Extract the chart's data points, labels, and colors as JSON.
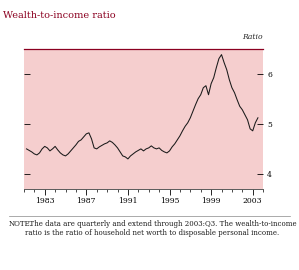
{
  "title": "Wealth-to-income ratio",
  "ylabel_right": "Ratio",
  "note_bold": "NOTE.",
  "note_rest": "  The data are quarterly and extend through 2003:Q3. The wealth-to-income ratio is the ratio of household net worth to disposable personal income.",
  "bg_white": "#ffffff",
  "background_color": "#f5cece",
  "line_color": "#1a1a1a",
  "title_color": "#8b0020",
  "border_color": "#8b0020",
  "tick_color": "#5a5a5a",
  "ylim": [
    3.7,
    6.5
  ],
  "yticks": [
    4,
    5,
    6
  ],
  "xlim": [
    1981.25,
    2004.0
  ],
  "xticks": [
    1983,
    1987,
    1991,
    1995,
    1999,
    2003
  ],
  "data": [
    [
      1981.25,
      4.5
    ],
    [
      1981.5,
      4.47
    ],
    [
      1981.75,
      4.44
    ],
    [
      1982.0,
      4.4
    ],
    [
      1982.25,
      4.38
    ],
    [
      1982.5,
      4.42
    ],
    [
      1982.75,
      4.5
    ],
    [
      1983.0,
      4.55
    ],
    [
      1983.25,
      4.52
    ],
    [
      1983.5,
      4.46
    ],
    [
      1983.75,
      4.5
    ],
    [
      1984.0,
      4.55
    ],
    [
      1984.25,
      4.48
    ],
    [
      1984.5,
      4.42
    ],
    [
      1984.75,
      4.38
    ],
    [
      1985.0,
      4.36
    ],
    [
      1985.25,
      4.4
    ],
    [
      1985.5,
      4.46
    ],
    [
      1985.75,
      4.52
    ],
    [
      1986.0,
      4.58
    ],
    [
      1986.25,
      4.65
    ],
    [
      1986.5,
      4.68
    ],
    [
      1986.75,
      4.74
    ],
    [
      1987.0,
      4.8
    ],
    [
      1987.25,
      4.82
    ],
    [
      1987.5,
      4.7
    ],
    [
      1987.75,
      4.52
    ],
    [
      1988.0,
      4.5
    ],
    [
      1988.25,
      4.54
    ],
    [
      1988.5,
      4.57
    ],
    [
      1988.75,
      4.6
    ],
    [
      1989.0,
      4.62
    ],
    [
      1989.25,
      4.66
    ],
    [
      1989.5,
      4.63
    ],
    [
      1989.75,
      4.58
    ],
    [
      1990.0,
      4.52
    ],
    [
      1990.25,
      4.44
    ],
    [
      1990.5,
      4.36
    ],
    [
      1990.75,
      4.34
    ],
    [
      1991.0,
      4.3
    ],
    [
      1991.25,
      4.36
    ],
    [
      1991.5,
      4.4
    ],
    [
      1991.75,
      4.44
    ],
    [
      1992.0,
      4.47
    ],
    [
      1992.25,
      4.5
    ],
    [
      1992.5,
      4.46
    ],
    [
      1992.75,
      4.5
    ],
    [
      1993.0,
      4.52
    ],
    [
      1993.25,
      4.56
    ],
    [
      1993.5,
      4.52
    ],
    [
      1993.75,
      4.5
    ],
    [
      1994.0,
      4.52
    ],
    [
      1994.25,
      4.47
    ],
    [
      1994.5,
      4.44
    ],
    [
      1994.75,
      4.42
    ],
    [
      1995.0,
      4.46
    ],
    [
      1995.25,
      4.54
    ],
    [
      1995.5,
      4.6
    ],
    [
      1995.75,
      4.68
    ],
    [
      1996.0,
      4.76
    ],
    [
      1996.25,
      4.86
    ],
    [
      1996.5,
      4.95
    ],
    [
      1996.75,
      5.02
    ],
    [
      1997.0,
      5.12
    ],
    [
      1997.25,
      5.25
    ],
    [
      1997.5,
      5.38
    ],
    [
      1997.75,
      5.5
    ],
    [
      1998.0,
      5.58
    ],
    [
      1998.25,
      5.72
    ],
    [
      1998.5,
      5.76
    ],
    [
      1998.75,
      5.58
    ],
    [
      1999.0,
      5.8
    ],
    [
      1999.25,
      5.92
    ],
    [
      1999.5,
      6.12
    ],
    [
      1999.75,
      6.3
    ],
    [
      2000.0,
      6.38
    ],
    [
      2000.25,
      6.22
    ],
    [
      2000.5,
      6.08
    ],
    [
      2000.75,
      5.88
    ],
    [
      2001.0,
      5.72
    ],
    [
      2001.25,
      5.62
    ],
    [
      2001.5,
      5.48
    ],
    [
      2001.75,
      5.35
    ],
    [
      2002.0,
      5.28
    ],
    [
      2002.25,
      5.18
    ],
    [
      2002.5,
      5.08
    ],
    [
      2002.75,
      4.9
    ],
    [
      2003.0,
      4.86
    ],
    [
      2003.25,
      5.02
    ],
    [
      2003.5,
      5.12
    ]
  ]
}
